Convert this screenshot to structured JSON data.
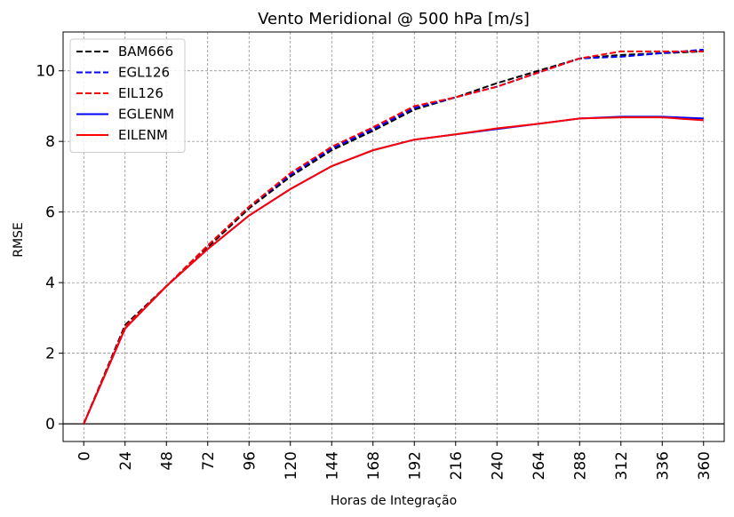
{
  "chart_data": {
    "type": "line",
    "title": "Vento Meridional @ 500 hPa [m/s]",
    "xlabel": "Horas de Integração",
    "ylabel": "RMSE",
    "x": [
      0,
      24,
      48,
      72,
      96,
      120,
      144,
      168,
      192,
      216,
      240,
      264,
      288,
      312,
      336,
      360
    ],
    "xticks": [
      "0",
      "24",
      "48",
      "72",
      "96",
      "120",
      "144",
      "168",
      "192",
      "216",
      "240",
      "264",
      "288",
      "312",
      "336",
      "360"
    ],
    "yticks": [
      "0",
      "2",
      "4",
      "6",
      "8",
      "10"
    ],
    "xlim": [
      -12,
      372
    ],
    "ylim": [
      -0.5,
      11.1
    ],
    "grid": true,
    "legend_position": "top-left",
    "series": [
      {
        "name": "BAM666",
        "color": "#000000",
        "dashed": true,
        "values": [
          0,
          2.8,
          3.9,
          5.0,
          6.1,
          7.0,
          7.75,
          8.3,
          8.9,
          9.25,
          9.65,
          10.0,
          10.35,
          10.45,
          10.5,
          10.55
        ]
      },
      {
        "name": "EGL126",
        "color": "#0000ff",
        "dashed": true,
        "values": [
          0,
          2.75,
          3.9,
          5.05,
          6.15,
          7.05,
          7.8,
          8.35,
          8.95,
          9.25,
          9.55,
          9.95,
          10.35,
          10.4,
          10.5,
          10.6
        ]
      },
      {
        "name": "EIL126",
        "color": "#ff0000",
        "dashed": true,
        "values": [
          0,
          2.75,
          3.9,
          5.05,
          6.15,
          7.1,
          7.85,
          8.4,
          9.0,
          9.25,
          9.55,
          9.95,
          10.35,
          10.55,
          10.55,
          10.55
        ]
      },
      {
        "name": "EGLENM",
        "color": "#0000ff",
        "dashed": false,
        "values": [
          0,
          2.7,
          3.9,
          4.95,
          5.9,
          6.65,
          7.3,
          7.75,
          8.05,
          8.2,
          8.35,
          8.5,
          8.65,
          8.7,
          8.7,
          8.65
        ]
      },
      {
        "name": "EILENM",
        "color": "#ff0000",
        "dashed": false,
        "values": [
          0,
          2.7,
          3.9,
          4.95,
          5.9,
          6.65,
          7.3,
          7.75,
          8.05,
          8.2,
          8.37,
          8.5,
          8.65,
          8.68,
          8.68,
          8.6
        ]
      }
    ]
  }
}
